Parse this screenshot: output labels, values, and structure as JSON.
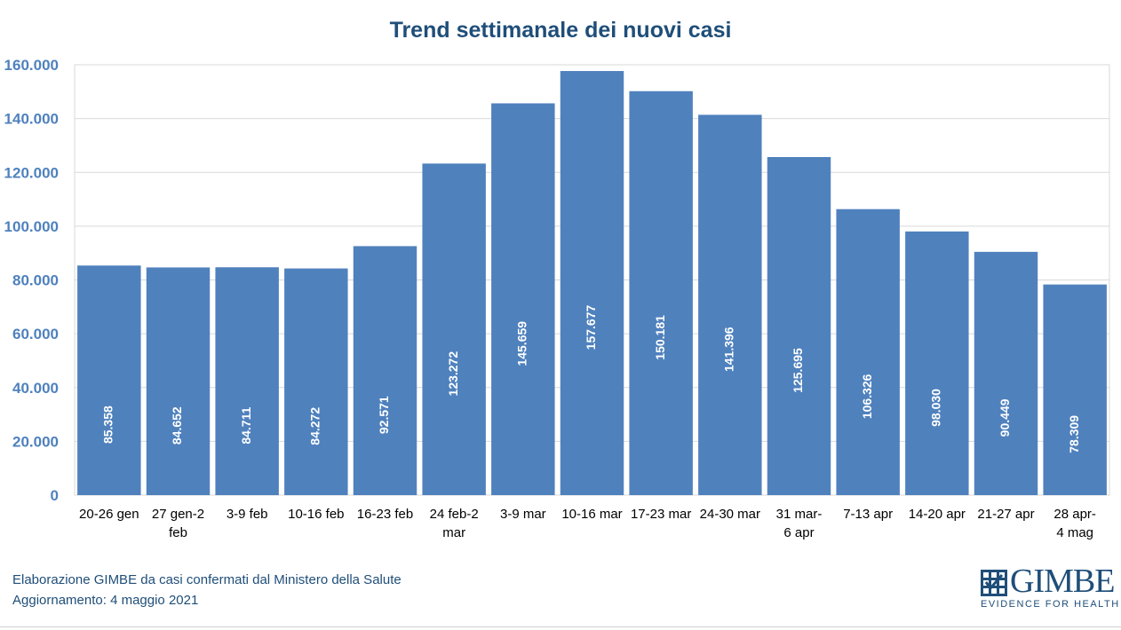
{
  "chart_data": {
    "type": "bar",
    "title": "Trend settimanale dei nuovi casi",
    "categories": [
      [
        "20-26 gen"
      ],
      [
        "27 gen-2",
        "feb"
      ],
      [
        "3-9 feb"
      ],
      [
        "10-16 feb"
      ],
      [
        "16-23 feb"
      ],
      [
        "24 feb-2",
        "mar"
      ],
      [
        "3-9 mar"
      ],
      [
        "10-16 mar"
      ],
      [
        "17-23 mar"
      ],
      [
        "24-30 mar"
      ],
      [
        "31 mar-",
        "6 apr"
      ],
      [
        "7-13 apr"
      ],
      [
        "14-20 apr"
      ],
      [
        "21-27 apr"
      ],
      [
        "28 apr-",
        "4 mag"
      ]
    ],
    "values": [
      85358,
      84652,
      84711,
      84272,
      92571,
      123272,
      145659,
      157677,
      150181,
      141396,
      125695,
      106326,
      98030,
      90449,
      78309
    ],
    "value_labels": [
      "85.358",
      "84.652",
      "84.711",
      "84.272",
      "92.571",
      "123.272",
      "145.659",
      "157.677",
      "150.181",
      "141.396",
      "125.695",
      "106.326",
      "98.030",
      "90.449",
      "78.309"
    ],
    "yticks": [
      0,
      20000,
      40000,
      60000,
      80000,
      100000,
      120000,
      140000,
      160000
    ],
    "ytick_labels": [
      "0",
      "20.000",
      "40.000",
      "60.000",
      "80.000",
      "100.000",
      "120.000",
      "140.000",
      "160.000"
    ],
    "ylim": [
      0,
      160000
    ],
    "xlabel": "",
    "ylabel": "",
    "grid": true,
    "colors": {
      "bar": "#4f81bd",
      "title": "#1f4e79",
      "ytick": "#4f81bd",
      "grid": "#d9d9d9",
      "data_label": "#ffffff"
    }
  },
  "footer": {
    "line1": "Elaborazione GIMBE da casi confermati dal Ministero della Salute",
    "line2": "Aggiornamento:  4 maggio 2021"
  },
  "logo": {
    "name": "GIMBE",
    "tagline": "EVIDENCE FOR HEALTH",
    "icon": "gimbe-grid-icon"
  }
}
